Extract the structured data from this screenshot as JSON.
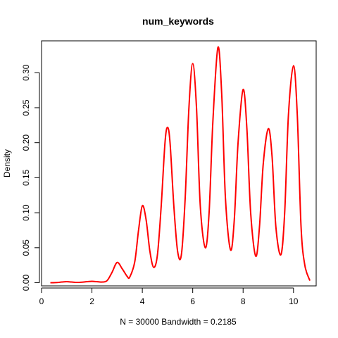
{
  "chart_data": {
    "type": "line",
    "title": "num_keywords",
    "xlabel": "N = 30000   Bandwidth = 0.2185",
    "ylabel": "Density",
    "xlim": [
      0.0,
      10.9
    ],
    "ylim": [
      -0.0045,
      0.3455
    ],
    "x_ticks": [
      0,
      2,
      4,
      6,
      8,
      10
    ],
    "x_tick_labels": [
      "0",
      "2",
      "4",
      "6",
      "8",
      "10"
    ],
    "y_ticks": [
      0.0,
      0.05,
      0.1,
      0.15,
      0.2,
      0.25,
      0.3
    ],
    "y_tick_labels": [
      "0.00",
      "0.05",
      "0.10",
      "0.15",
      "0.20",
      "0.25",
      "0.30"
    ],
    "grid": false,
    "legend": "none",
    "series": [
      {
        "color": "#ff0000",
        "x": [
          0.35,
          0.6,
          0.8,
          1.0,
          1.2,
          1.4,
          1.6,
          1.8,
          2.0,
          2.2,
          2.4,
          2.6,
          2.8,
          3.0,
          3.2,
          3.4,
          3.5,
          3.7,
          3.85,
          4.0,
          4.15,
          4.3,
          4.45,
          4.6,
          4.75,
          4.9,
          5.0,
          5.1,
          5.25,
          5.4,
          5.55,
          5.7,
          5.85,
          6.0,
          6.15,
          6.3,
          6.5,
          6.65,
          6.8,
          7.0,
          7.15,
          7.3,
          7.5,
          7.65,
          7.8,
          8.0,
          8.15,
          8.3,
          8.5,
          8.65,
          8.8,
          9.0,
          9.15,
          9.3,
          9.5,
          9.65,
          9.8,
          10.0,
          10.15,
          10.3,
          10.45,
          10.65
        ],
        "y": [
          0.0,
          0.0003,
          0.001,
          0.0015,
          0.001,
          0.0005,
          0.0008,
          0.0015,
          0.002,
          0.0015,
          0.001,
          0.003,
          0.015,
          0.029,
          0.02,
          0.009,
          0.008,
          0.03,
          0.075,
          0.11,
          0.09,
          0.045,
          0.022,
          0.04,
          0.11,
          0.2,
          0.222,
          0.2,
          0.11,
          0.045,
          0.04,
          0.12,
          0.25,
          0.313,
          0.25,
          0.11,
          0.05,
          0.1,
          0.23,
          0.336,
          0.27,
          0.12,
          0.047,
          0.09,
          0.2,
          0.276,
          0.22,
          0.1,
          0.038,
          0.08,
          0.17,
          0.22,
          0.18,
          0.08,
          0.04,
          0.1,
          0.24,
          0.31,
          0.24,
          0.08,
          0.025,
          0.003
        ]
      }
    ]
  }
}
